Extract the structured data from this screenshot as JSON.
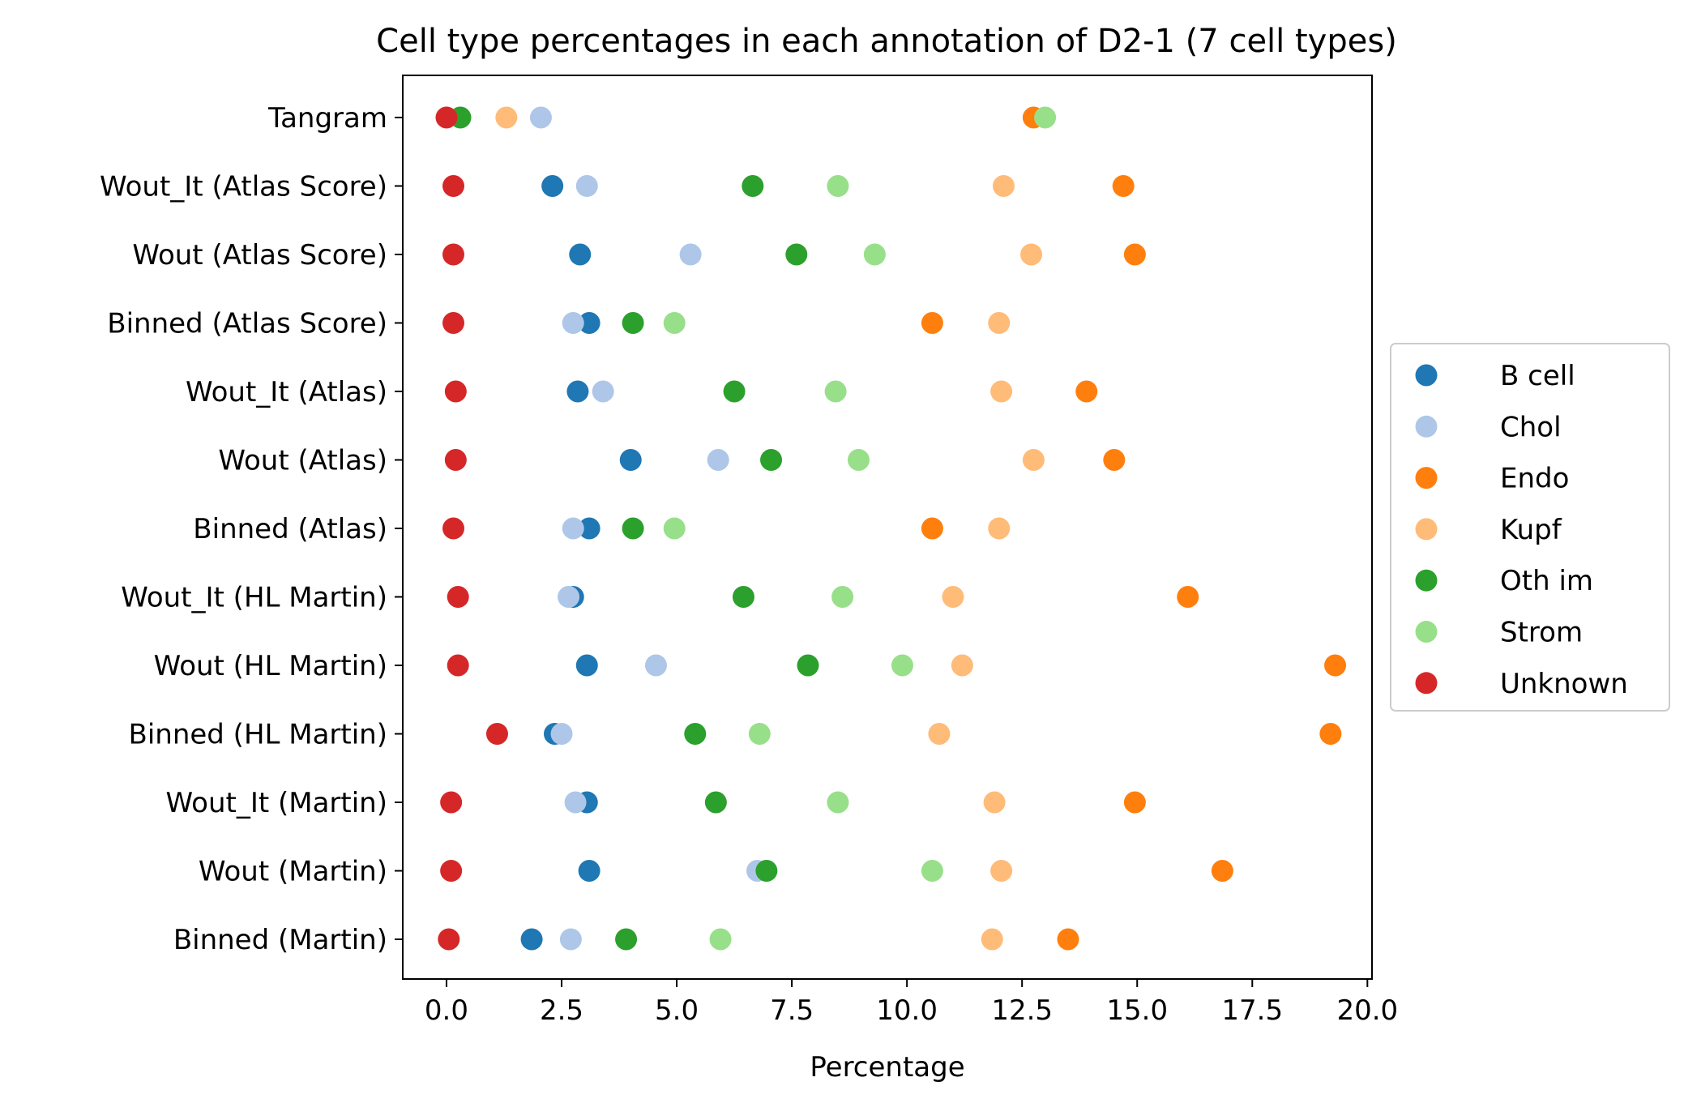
{
  "chart_data": {
    "type": "scatter",
    "title": "Cell type percentages in each annotation of D2-1 (7 cell types)",
    "xlabel": "Percentage",
    "ylabel": "",
    "xlim": [
      -0.95,
      20.1
    ],
    "x_ticks": [
      0.0,
      2.5,
      5.0,
      7.5,
      10.0,
      12.5,
      15.0,
      17.5,
      20.0
    ],
    "x_tick_labels": [
      "0.0",
      "2.5",
      "5.0",
      "7.5",
      "10.0",
      "12.5",
      "15.0",
      "17.5",
      "20.0"
    ],
    "categories": [
      "Tangram",
      "Wout_It (Atlas Score)",
      "Wout (Atlas Score)",
      "Binned (Atlas Score)",
      "Wout_It (Atlas)",
      "Wout (Atlas)",
      "Binned (Atlas)",
      "Wout_It (HL Martin)",
      "Wout (HL Martin)",
      "Binned (HL Martin)",
      "Wout_It (Martin)",
      "Wout (Martin)",
      "Binned (Martin)"
    ],
    "grid": false,
    "legend_position": "right",
    "series": [
      {
        "name": "B cell",
        "color": "#1f77b4",
        "values": [
          null,
          2.3,
          2.9,
          3.1,
          2.85,
          4.0,
          3.1,
          2.75,
          3.05,
          2.35,
          3.05,
          3.1,
          1.85
        ]
      },
      {
        "name": "Chol",
        "color": "#aec7e8",
        "values": [
          2.05,
          3.05,
          5.3,
          2.75,
          3.4,
          5.9,
          2.75,
          2.65,
          4.55,
          2.5,
          2.8,
          6.75,
          2.7
        ]
      },
      {
        "name": "Endo",
        "color": "#ff7f0e",
        "values": [
          12.75,
          14.7,
          14.95,
          10.55,
          13.9,
          14.5,
          10.55,
          16.1,
          19.3,
          19.2,
          14.95,
          16.85,
          13.5
        ]
      },
      {
        "name": "Kupf",
        "color": "#ffbb78",
        "values": [
          1.3,
          12.1,
          12.7,
          12.0,
          12.05,
          12.75,
          12.0,
          11.0,
          11.2,
          10.7,
          11.9,
          12.05,
          11.85
        ]
      },
      {
        "name": "Oth im",
        "color": "#2ca02c",
        "values": [
          0.3,
          6.65,
          7.6,
          4.05,
          6.25,
          7.05,
          4.05,
          6.45,
          7.85,
          5.4,
          5.85,
          6.95,
          3.9
        ]
      },
      {
        "name": "Strom",
        "color": "#98df8a",
        "values": [
          13.0,
          8.5,
          9.3,
          4.95,
          8.45,
          8.95,
          4.95,
          8.6,
          9.9,
          6.8,
          8.5,
          10.55,
          5.95
        ]
      },
      {
        "name": "Unknown",
        "color": "#d62728",
        "values": [
          0.0,
          0.15,
          0.15,
          0.15,
          0.2,
          0.2,
          0.15,
          0.25,
          0.25,
          1.1,
          0.1,
          0.1,
          0.05
        ]
      }
    ]
  }
}
